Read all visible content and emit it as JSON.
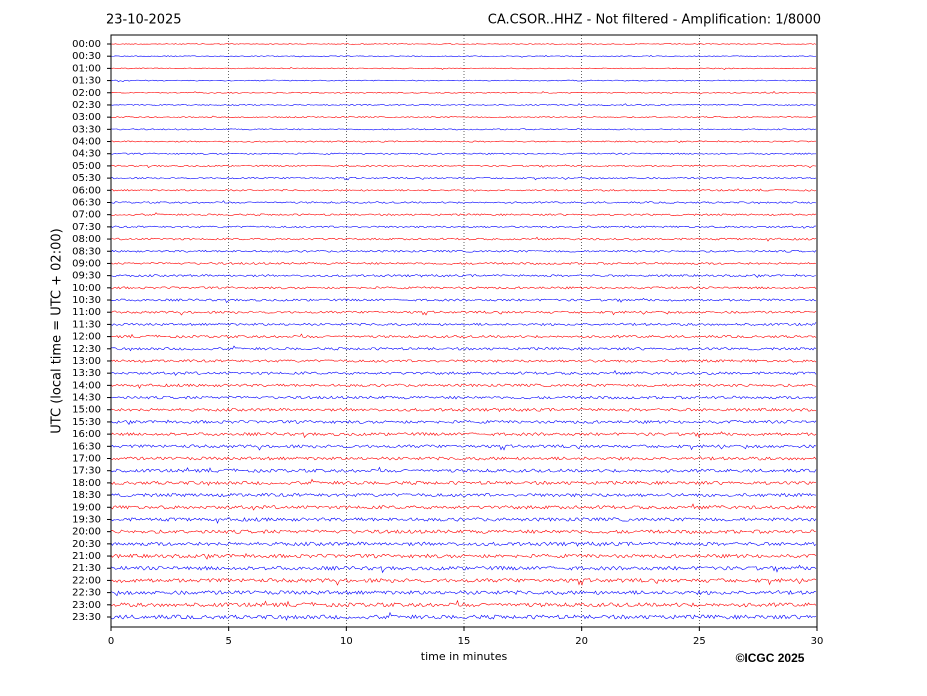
{
  "chart_data": {
    "type": "helicorder",
    "date": "23-10-2025",
    "title": "CA.CSOR..HHZ - Not filtered - Amplification: 1/8000",
    "ylabel": "UTC (local time = UTC + 02:00)",
    "xlabel": "time in minutes",
    "credit": "©ICGC 2025",
    "xlim": [
      0,
      30
    ],
    "xticks": [
      0,
      5,
      10,
      15,
      20,
      25,
      30
    ],
    "grid": true,
    "colors": [
      "#ff0000",
      "#0000ff"
    ],
    "categories": [
      "00:00",
      "00:30",
      "01:00",
      "01:30",
      "02:00",
      "02:30",
      "03:00",
      "03:30",
      "04:00",
      "04:30",
      "05:00",
      "05:30",
      "06:00",
      "06:30",
      "07:00",
      "07:30",
      "08:00",
      "08:30",
      "09:00",
      "09:30",
      "10:00",
      "10:30",
      "11:00",
      "11:30",
      "12:00",
      "12:30",
      "13:00",
      "13:30",
      "14:00",
      "14:30",
      "15:00",
      "15:30",
      "16:00",
      "16:30",
      "17:00",
      "17:30",
      "18:00",
      "18:30",
      "19:00",
      "19:30",
      "20:00",
      "20:30",
      "21:00",
      "21:30",
      "22:00",
      "22:30",
      "23:00",
      "23:30"
    ]
  }
}
